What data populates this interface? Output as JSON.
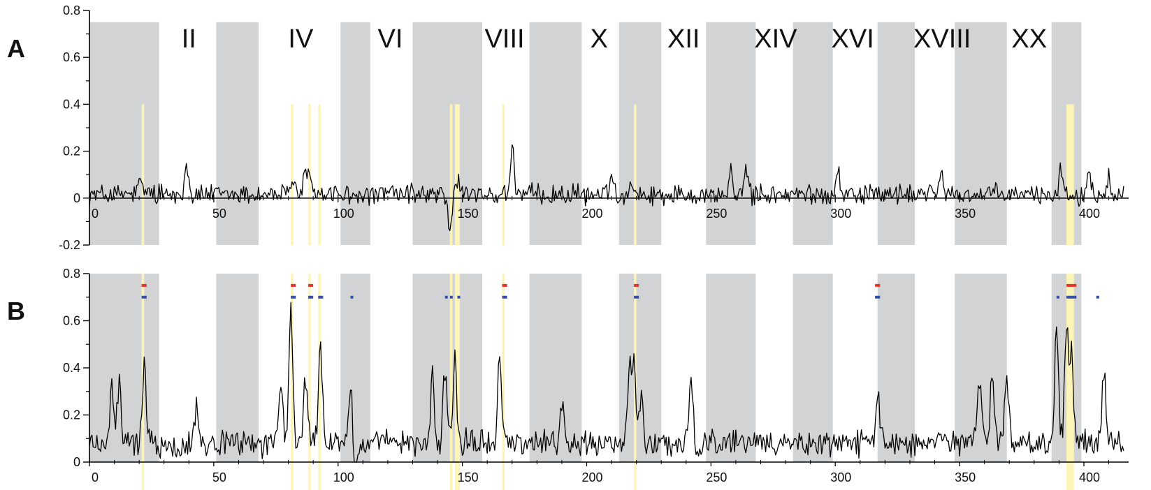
{
  "chart_data": [
    {
      "type": "line",
      "panel_label": "A",
      "xlim": [
        0,
        418
      ],
      "ylim": [
        -0.2,
        0.8
      ],
      "yticks": [
        -0.2,
        0,
        0.2,
        0.4,
        0.6,
        0.8
      ],
      "ytick_labels": [
        "-0.2",
        "0",
        "0.2",
        "0.4",
        "0.6",
        "0.8"
      ],
      "xticks": [
        0,
        50,
        100,
        150,
        200,
        250,
        300,
        350,
        400
      ],
      "xtick_labels": [
        "0",
        "50",
        "100",
        "150",
        "200",
        "250",
        "300",
        "350",
        "400"
      ],
      "band_ylim": [
        -0.2,
        0.75
      ],
      "shaded_bands": [
        [
          0,
          28
        ],
        [
          51,
          68
        ],
        [
          101,
          113
        ],
        [
          130,
          158
        ],
        [
          177,
          198
        ],
        [
          213,
          230
        ],
        [
          248,
          268
        ],
        [
          283,
          299
        ],
        [
          317,
          332
        ],
        [
          348,
          369
        ],
        [
          387,
          399
        ]
      ],
      "band_labels": [
        "II",
        "IV",
        "VI",
        "VIII",
        "X",
        "XII",
        "XIV",
        "XVI",
        "XVIII",
        "XX"
      ],
      "band_label_x": [
        40,
        85,
        121,
        167,
        205,
        239,
        276,
        307,
        343,
        378
      ],
      "highlight_ylim": [
        -0.2,
        0.4
      ],
      "highlights": [
        [
          21,
          22
        ],
        [
          81,
          82
        ],
        [
          88,
          89
        ],
        [
          92,
          93
        ],
        [
          145,
          146
        ],
        [
          147,
          149
        ],
        [
          166,
          167
        ],
        [
          219,
          220
        ],
        [
          393,
          396
        ]
      ],
      "peaks": [
        [
          21,
          0.1
        ],
        [
          39,
          0.19
        ],
        [
          82,
          0.08
        ],
        [
          87,
          0.14
        ],
        [
          89,
          0.1
        ],
        [
          145,
          -0.14
        ],
        [
          148,
          0.08
        ],
        [
          170,
          0.26
        ],
        [
          210,
          0.12
        ],
        [
          218,
          0.1
        ],
        [
          258,
          0.12
        ],
        [
          264,
          0.13
        ],
        [
          301,
          0.15
        ],
        [
          343,
          0.11
        ],
        [
          391,
          0.15
        ],
        [
          402,
          0.12
        ],
        [
          410,
          0.11
        ]
      ],
      "baseline": 0.015,
      "noise_amplitude": 0.035,
      "line_color": "#000000",
      "band_color": "#d2d3d5",
      "highlight_color": "#fdf5b8"
    },
    {
      "type": "line",
      "panel_label": "B",
      "xlim": [
        0,
        418
      ],
      "ylim": [
        0,
        0.8
      ],
      "yticks": [
        0,
        0.2,
        0.4,
        0.6,
        0.8
      ],
      "ytick_labels": [
        "0",
        "0.2",
        "0.4",
        "0.6",
        "0.8"
      ],
      "xticks": [
        0,
        50,
        100,
        150,
        200,
        250,
        300,
        350,
        400
      ],
      "xtick_labels": [
        "0",
        "50",
        "100",
        "150",
        "200",
        "250",
        "300",
        "350",
        "400"
      ],
      "band_ylim": [
        0,
        0.8
      ],
      "shaded_bands": [
        [
          0,
          28
        ],
        [
          51,
          68
        ],
        [
          101,
          113
        ],
        [
          130,
          158
        ],
        [
          177,
          198
        ],
        [
          213,
          230
        ],
        [
          248,
          268
        ],
        [
          283,
          299
        ],
        [
          317,
          332
        ],
        [
          348,
          369
        ],
        [
          387,
          399
        ]
      ],
      "highlight_ylim": [
        -0.15,
        0.8
      ],
      "highlights": [
        [
          21,
          22
        ],
        [
          81,
          82
        ],
        [
          88,
          89
        ],
        [
          92,
          93
        ],
        [
          145,
          146
        ],
        [
          147,
          149
        ],
        [
          166,
          167
        ],
        [
          219,
          220
        ],
        [
          393,
          396
        ]
      ],
      "red_markers": [
        [
          21,
          23
        ],
        [
          81,
          83
        ],
        [
          88,
          90
        ],
        [
          166,
          168
        ],
        [
          219,
          221
        ],
        [
          316,
          318
        ],
        [
          393,
          397
        ]
      ],
      "red_marker_y": 0.75,
      "blue_markers": [
        [
          21,
          23
        ],
        [
          81,
          83
        ],
        [
          88,
          90
        ],
        [
          92,
          94
        ],
        [
          105,
          106
        ],
        [
          143,
          144
        ],
        [
          145,
          146
        ],
        [
          148,
          149
        ],
        [
          166,
          168
        ],
        [
          219,
          221
        ],
        [
          316,
          318
        ],
        [
          389,
          390
        ],
        [
          393,
          397
        ],
        [
          405,
          406
        ]
      ],
      "blue_marker_y": 0.7,
      "peaks": [
        [
          9,
          0.35
        ],
        [
          12,
          0.36
        ],
        [
          22,
          0.47
        ],
        [
          43,
          0.27
        ],
        [
          77,
          0.38
        ],
        [
          81,
          0.67
        ],
        [
          87,
          0.41
        ],
        [
          93,
          0.53
        ],
        [
          105,
          0.37
        ],
        [
          107,
          -0.12
        ],
        [
          138,
          0.4
        ],
        [
          143,
          0.45
        ],
        [
          147,
          0.46
        ],
        [
          165,
          0.5
        ],
        [
          190,
          0.29
        ],
        [
          217,
          0.41
        ],
        [
          219,
          0.49
        ],
        [
          222,
          0.3
        ],
        [
          242,
          0.39
        ],
        [
          317,
          0.35
        ],
        [
          358,
          0.39
        ],
        [
          363,
          0.4
        ],
        [
          369,
          0.42
        ],
        [
          389,
          0.64
        ],
        [
          393,
          0.6
        ],
        [
          395,
          0.5
        ],
        [
          408,
          0.46
        ]
      ],
      "baseline": 0.08,
      "noise_amplitude": 0.045,
      "line_color": "#000000",
      "band_color": "#d2d3d5",
      "highlight_color": "#fdf5b8",
      "red_color": "#e8322b",
      "blue_color": "#3450a8"
    }
  ]
}
